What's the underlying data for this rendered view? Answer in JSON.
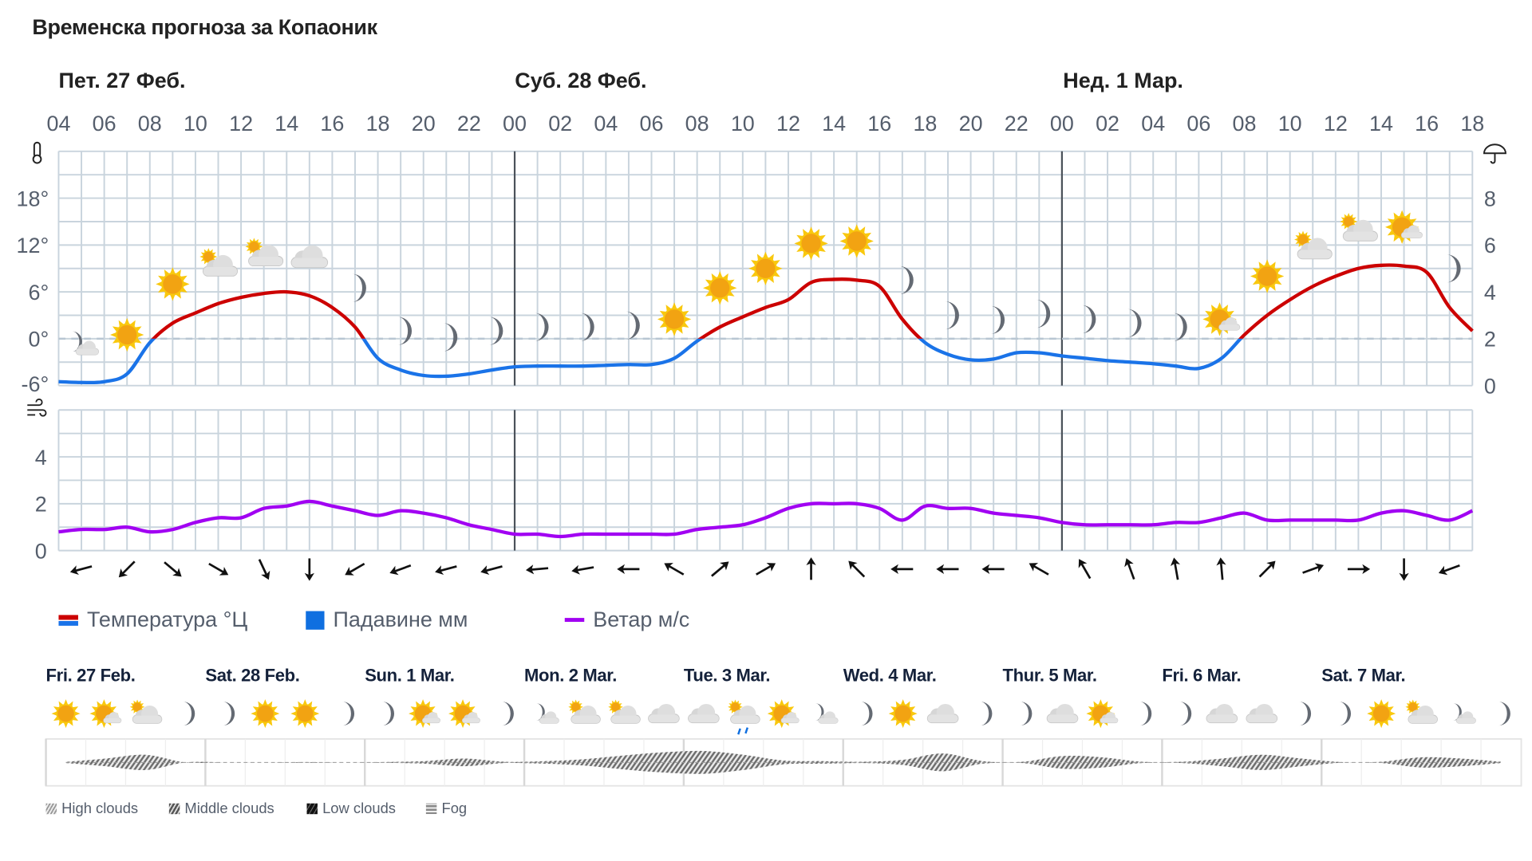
{
  "title": "Временска прогноза за Копаоник",
  "day_headers": [
    "Пет. 27 Феб.",
    "Суб. 28 Феб.",
    "Нед. 1 Мар."
  ],
  "hour_labels": [
    "04",
    "06",
    "08",
    "10",
    "12",
    "14",
    "16",
    "18",
    "20",
    "22",
    "00",
    "02",
    "04",
    "06",
    "08",
    "10",
    "12",
    "14",
    "16",
    "18",
    "20",
    "22",
    "00",
    "02",
    "04",
    "06",
    "08",
    "10",
    "12",
    "14",
    "16",
    "18"
  ],
  "temp_axis_ticks": [
    "18°",
    "12°",
    "6°",
    "0°",
    "-6°"
  ],
  "precip_axis_ticks": [
    "8",
    "6",
    "4",
    "2",
    "0"
  ],
  "wind_axis_ticks": [
    "4",
    "2",
    "0"
  ],
  "chart_data": [
    {
      "type": "line",
      "series": [
        {
          "name": "Температура °Ц",
          "unit": "°C",
          "values": [
            -5.5,
            -5.6,
            -5.5,
            -4.5,
            -0.5,
            2,
            3.3,
            4.5,
            5.3,
            5.8,
            6,
            5.5,
            4,
            1.5,
            -2.5,
            -4,
            -4.7,
            -4.8,
            -4.5,
            -4,
            -3.6,
            -3.5,
            -3.5,
            -3.5,
            -3.4,
            -3.3,
            -3.3,
            -2.5,
            -0.3,
            1.5,
            2.8,
            4,
            5,
            7.2,
            7.6,
            7.5,
            6.7,
            2.5,
            -0.5,
            -2,
            -2.7,
            -2.6,
            -1.8,
            -1.8,
            -2.2,
            -2.5,
            -2.8,
            -3,
            -3.2,
            -3.5,
            -3.8,
            -2.5,
            0.5,
            3,
            5,
            6.7,
            8,
            9,
            9.4,
            9.3,
            8.5,
            4,
            1
          ]
        },
        {
          "name": "Ветар м/с",
          "unit": "m/s",
          "values": [
            0.8,
            0.9,
            0.9,
            1.0,
            0.8,
            0.9,
            1.2,
            1.4,
            1.4,
            1.8,
            1.9,
            2.1,
            1.9,
            1.7,
            1.5,
            1.7,
            1.6,
            1.4,
            1.1,
            0.9,
            0.7,
            0.7,
            0.6,
            0.7,
            0.7,
            0.7,
            0.7,
            0.7,
            0.9,
            1.0,
            1.1,
            1.4,
            1.8,
            2.0,
            2.0,
            2.0,
            1.8,
            1.3,
            1.9,
            1.8,
            1.8,
            1.6,
            1.5,
            1.4,
            1.2,
            1.1,
            1.1,
            1.1,
            1.1,
            1.2,
            1.2,
            1.4,
            1.6,
            1.3,
            1.3,
            1.3,
            1.3,
            1.3,
            1.6,
            1.7,
            1.5,
            1.3,
            1.7
          ]
        }
      ],
      "temp_ylim": [
        -6,
        24
      ],
      "precip_ylim": [
        0,
        10
      ],
      "wind_ylim": [
        0,
        6
      ],
      "grid": true
    }
  ],
  "weather_icons_2h": [
    "moon-cloud",
    "sun",
    "sun",
    "mostly-cloudy",
    "mostly-cloudy",
    "cloud",
    "moon",
    "moon",
    "moon",
    "moon",
    "moon",
    "moon",
    "moon",
    "sun",
    "sun",
    "sun",
    "sun",
    "sun",
    "moon",
    "moon",
    "moon",
    "moon",
    "moon",
    "moon",
    "moon",
    "partly-sunny",
    "sun",
    "mostly-cloudy",
    "mostly-cloudy",
    "partly-sunny",
    "moon"
  ],
  "wind_direction_deg": [
    255,
    225,
    130,
    120,
    155,
    180,
    240,
    250,
    255,
    255,
    265,
    260,
    270,
    300,
    50,
    60,
    0,
    315,
    270,
    270,
    270,
    300,
    330,
    340,
    350,
    355,
    45,
    70,
    90,
    180,
    250
  ],
  "legend": [
    {
      "label": "Температура °Ц"
    },
    {
      "label": "Падавине мм"
    },
    {
      "label": "Ветар м/с"
    }
  ],
  "colors": {
    "temp_above": "#cc0000",
    "temp_below": "#1a73e8",
    "precip": "#0f6fe0",
    "wind": "#a100f2",
    "grid": "#c9d4dd",
    "day_divider": "#4b525a"
  },
  "outlook": {
    "days": [
      {
        "label": "Fri. 27 Feb.",
        "icons": [
          "sun",
          "partly-sunny",
          "mostly-cloudy",
          "moon"
        ]
      },
      {
        "label": "Sat. 28 Feb.",
        "icons": [
          "moon",
          "sun",
          "sun",
          "moon"
        ]
      },
      {
        "label": "Sun. 1 Mar.",
        "icons": [
          "moon",
          "partly-sunny",
          "partly-sunny",
          "moon"
        ]
      },
      {
        "label": "Mon. 2 Mar.",
        "icons": [
          "moon-cloud",
          "mostly-cloudy",
          "mostly-cloudy",
          "cloud"
        ]
      },
      {
        "label": "Tue. 3 Mar.",
        "icons": [
          "cloud",
          "cloud-sun-rain",
          "partly-sunny",
          "moon-cloud"
        ]
      },
      {
        "label": "Wed. 4 Mar.",
        "icons": [
          "moon",
          "sun",
          "cloud",
          "moon"
        ]
      },
      {
        "label": "Thur. 5 Mar.",
        "icons": [
          "moon",
          "cloud",
          "partly-sunny",
          "moon"
        ]
      },
      {
        "label": "Fri. 6 Mar.",
        "icons": [
          "moon",
          "cloud",
          "cloud",
          "moon"
        ]
      },
      {
        "label": "Sat. 7 Mar.",
        "icons": [
          "moon",
          "sun",
          "mostly-cloudy",
          "moon-cloud",
          "moon"
        ]
      }
    ],
    "cloud_cover": [
      0.05,
      0.3,
      0.6,
      0,
      0,
      0,
      0.03,
      0,
      0.03,
      0.1,
      0.3,
      0.05,
      0.1,
      0.25,
      0.55,
      0.8,
      0.9,
      0.6,
      0.15,
      0.1,
      0.05,
      0.2,
      0.7,
      0.1,
      0.05,
      0.5,
      0.4,
      0.05,
      0.05,
      0.3,
      0.6,
      0.3,
      0.03,
      0.05,
      0.4,
      0.3,
      0.05
    ],
    "cloud_legend": [
      {
        "label": "High clouds"
      },
      {
        "label": "Middle clouds"
      },
      {
        "label": "Low clouds"
      },
      {
        "label": "Fog"
      }
    ]
  }
}
